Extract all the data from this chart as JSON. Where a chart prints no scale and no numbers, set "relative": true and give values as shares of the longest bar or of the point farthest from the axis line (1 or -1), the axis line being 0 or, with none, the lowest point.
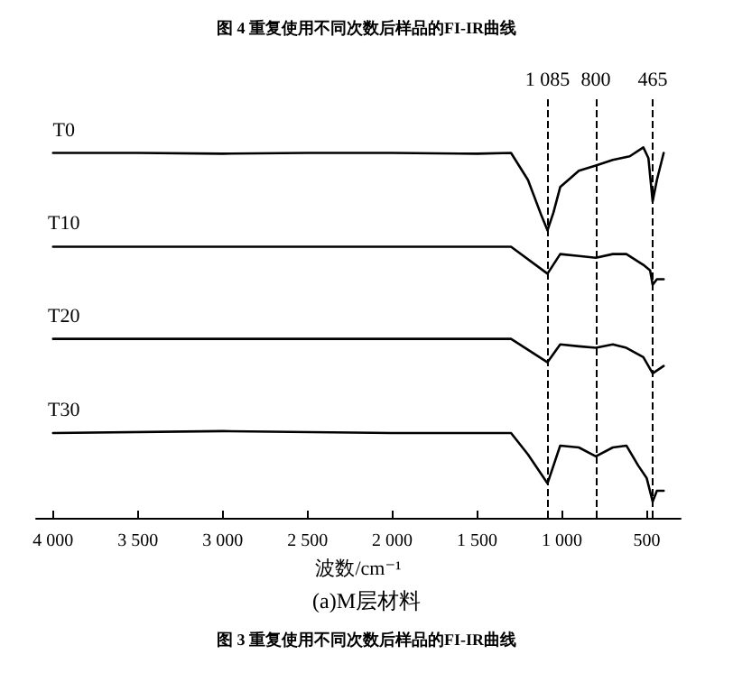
{
  "chart_data": {
    "type": "line",
    "title": "图 4 重复使用不同次数后样品的FI-IR曲线",
    "xlabel": "波数/cm⁻¹",
    "annotations": [
      "(a)M层材料",
      "图 3 重复使用不同次数后样品的FI-IR曲线"
    ],
    "relative": true,
    "marker": "none",
    "line_style": "solid",
    "legend": false,
    "grid": false,
    "xlim": [
      4100,
      300
    ],
    "xticks": [
      {
        "value": 4000,
        "label": "4 000"
      },
      {
        "value": 3500,
        "label": "3 500"
      },
      {
        "value": 3000,
        "label": "3 000"
      },
      {
        "value": 2500,
        "label": "2 500"
      },
      {
        "value": 2000,
        "label": "2 000"
      },
      {
        "value": 1500,
        "label": "1 500"
      },
      {
        "value": 1000,
        "label": "1 000"
      },
      500
    ],
    "ref_lines": [
      {
        "axis": "x",
        "value": 1085,
        "label": "1 085",
        "line_style": "dashed"
      },
      {
        "axis": "x",
        "value": 800,
        "label": "800",
        "line_style": "dashed"
      },
      {
        "axis": "x",
        "value": 465,
        "label": "465",
        "line_style": "dashed"
      }
    ],
    "series": [
      {
        "name": "T0",
        "color": "#000000",
        "x": [
          4000,
          3500,
          3000,
          2500,
          2000,
          1500,
          1300,
          1200,
          1120,
          1085,
          1050,
          1010,
          950,
          900,
          800,
          700,
          600,
          520,
          490,
          465,
          440,
          400
        ],
        "values": [
          0.985,
          0.985,
          0.983,
          0.985,
          0.985,
          0.983,
          0.985,
          0.912,
          0.815,
          0.776,
          0.824,
          0.893,
          0.917,
          0.937,
          0.951,
          0.966,
          0.976,
          1.0,
          0.971,
          0.854,
          0.912,
          0.985
        ]
      },
      {
        "name": "T10",
        "color": "#000000",
        "x": [
          4000,
          3000,
          2000,
          1300,
          1085,
          1010,
          900,
          800,
          700,
          620,
          520,
          480,
          465,
          440,
          400
        ],
        "values": [
          0.732,
          0.732,
          0.732,
          0.732,
          0.659,
          0.712,
          0.707,
          0.702,
          0.712,
          0.712,
          0.683,
          0.668,
          0.629,
          0.644,
          0.644
        ]
      },
      {
        "name": "T20",
        "color": "#000000",
        "x": [
          4000,
          3000,
          2000,
          1300,
          1085,
          1010,
          900,
          800,
          700,
          620,
          520,
          465,
          400
        ],
        "values": [
          0.483,
          0.483,
          0.483,
          0.483,
          0.42,
          0.468,
          0.463,
          0.459,
          0.468,
          0.459,
          0.434,
          0.39,
          0.41
        ]
      },
      {
        "name": "T30",
        "color": "#000000",
        "x": [
          4000,
          3000,
          2000,
          1300,
          1200,
          1085,
          1010,
          900,
          800,
          700,
          620,
          550,
          500,
          465,
          440,
          400
        ],
        "values": [
          0.229,
          0.234,
          0.229,
          0.229,
          0.171,
          0.093,
          0.195,
          0.19,
          0.166,
          0.19,
          0.195,
          0.141,
          0.107,
          0.044,
          0.073,
          0.073
        ]
      }
    ]
  }
}
